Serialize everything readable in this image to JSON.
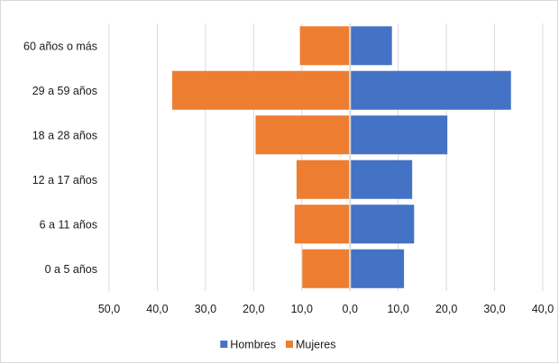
{
  "chart_data": {
    "type": "bar",
    "orientation": "horizontal",
    "title": "",
    "xlabel": "",
    "ylabel": "",
    "categories": [
      "0 a 5 años",
      "6 a 11 años",
      "12 a 17 años",
      "18 a 28 años",
      "29 a 59 años",
      "60 años o más"
    ],
    "series": [
      {
        "name": "Hombres",
        "color": "#4472C4",
        "direction": "right",
        "values": [
          11.2,
          13.3,
          12.9,
          20.2,
          33.4,
          8.7
        ]
      },
      {
        "name": "Mujeres",
        "color": "#ED7D31",
        "direction": "left",
        "values": [
          9.9,
          11.5,
          11.1,
          19.6,
          36.9,
          10.4
        ]
      }
    ],
    "xlim": [
      -50,
      40
    ],
    "x_ticks": [
      -50,
      -40,
      -30,
      -20,
      -10,
      0,
      10,
      20,
      30,
      40
    ],
    "x_tick_labels": [
      "50,0",
      "40,0",
      "30,0",
      "20,0",
      "10,0",
      "0,0",
      "10,0",
      "20,0",
      "30,0",
      "40,0"
    ],
    "grid": true,
    "legend_position": "bottom"
  }
}
